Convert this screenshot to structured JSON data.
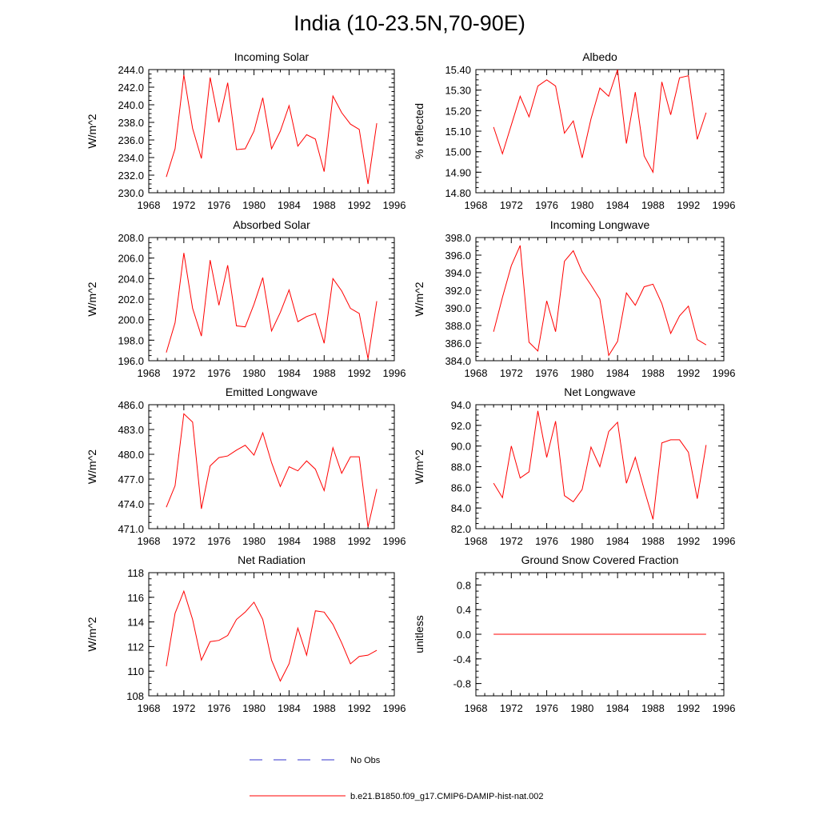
{
  "figure": {
    "title": "India (10-23.5N,70-90E)"
  },
  "legend": {
    "placement": "bottom-center",
    "entries": [
      {
        "label": "No Obs",
        "color": "#3333cc",
        "style": "dashed"
      },
      {
        "label": "b.e21.B1850.f09_g17.CMIP6-DAMIP-hist-nat.002",
        "color": "#ff0000",
        "style": "solid"
      }
    ]
  },
  "chart_data": [
    {
      "type": "line",
      "title": "Incoming Solar",
      "ylabel": "W/m^2",
      "xlim": [
        1968,
        1996
      ],
      "ylim": [
        230,
        244
      ],
      "xticks": [
        "1968",
        "1972",
        "1976",
        "1980",
        "1984",
        "1988",
        "1992",
        "1996"
      ],
      "yticks": [
        "230.0",
        "232.0",
        "234.0",
        "236.0",
        "238.0",
        "240.0",
        "242.0",
        "244.0"
      ],
      "x": [
        1970,
        1971,
        1972,
        1973,
        1974,
        1975,
        1976,
        1977,
        1978,
        1979,
        1980,
        1981,
        1982,
        1983,
        1984,
        1985,
        1986,
        1987,
        1988,
        1989,
        1990,
        1991,
        1992,
        1993,
        1994
      ],
      "series": [
        {
          "name": "b.e21.B1850.f09_g17.CMIP6-DAMIP-hist-nat.002",
          "color": "#ff0000",
          "values": [
            231.8,
            235.0,
            243.4,
            237.3,
            233.9,
            243.1,
            238.0,
            242.5,
            234.9,
            235.0,
            237.0,
            240.8,
            235.0,
            237.0,
            239.9,
            235.3,
            236.6,
            236.1,
            232.4,
            241.0,
            239.1,
            237.8,
            237.2,
            231.0,
            237.9
          ]
        }
      ]
    },
    {
      "type": "line",
      "title": "Albedo",
      "ylabel": "% reflected",
      "xlim": [
        1968,
        1996
      ],
      "ylim": [
        14.8,
        15.4
      ],
      "xticks": [
        "1968",
        "1972",
        "1976",
        "1980",
        "1984",
        "1988",
        "1992",
        "1996"
      ],
      "yticks": [
        "14.80",
        "14.90",
        "15.00",
        "15.10",
        "15.20",
        "15.30",
        "15.40"
      ],
      "x": [
        1970,
        1971,
        1972,
        1973,
        1974,
        1975,
        1976,
        1977,
        1978,
        1979,
        1980,
        1981,
        1982,
        1983,
        1984,
        1985,
        1986,
        1987,
        1988,
        1989,
        1990,
        1991,
        1992,
        1993,
        1994
      ],
      "series": [
        {
          "name": "b.e21.B1850.f09_g17.CMIP6-DAMIP-hist-nat.002",
          "color": "#ff0000",
          "values": [
            15.12,
            14.99,
            15.13,
            15.27,
            15.17,
            15.32,
            15.35,
            15.32,
            15.09,
            15.15,
            14.97,
            15.16,
            15.31,
            15.27,
            15.4,
            15.04,
            15.29,
            14.98,
            14.9,
            15.34,
            15.18,
            15.36,
            15.37,
            15.06,
            15.19
          ]
        }
      ]
    },
    {
      "type": "line",
      "title": "Absorbed Solar",
      "ylabel": "W/m^2",
      "xlim": [
        1968,
        1996
      ],
      "ylim": [
        196,
        208
      ],
      "xticks": [
        "1968",
        "1972",
        "1976",
        "1980",
        "1984",
        "1988",
        "1992",
        "1996"
      ],
      "yticks": [
        "196.0",
        "198.0",
        "200.0",
        "202.0",
        "204.0",
        "206.0",
        "208.0"
      ],
      "x": [
        1970,
        1971,
        1972,
        1973,
        1974,
        1975,
        1976,
        1977,
        1978,
        1979,
        1980,
        1981,
        1982,
        1983,
        1984,
        1985,
        1986,
        1987,
        1988,
        1989,
        1990,
        1991,
        1992,
        1993,
        1994
      ],
      "series": [
        {
          "name": "b.e21.B1850.f09_g17.CMIP6-DAMIP-hist-nat.002",
          "color": "#ff0000",
          "values": [
            196.8,
            199.7,
            206.5,
            201.1,
            198.4,
            205.8,
            201.4,
            205.3,
            199.4,
            199.3,
            201.5,
            204.1,
            198.9,
            200.7,
            202.9,
            199.8,
            200.3,
            200.6,
            197.7,
            204.0,
            202.8,
            201.1,
            200.6,
            196.2,
            201.8
          ]
        }
      ]
    },
    {
      "type": "line",
      "title": "Incoming Longwave",
      "ylabel": "W/m^2",
      "xlim": [
        1968,
        1996
      ],
      "ylim": [
        384,
        398
      ],
      "xticks": [
        "1968",
        "1972",
        "1976",
        "1980",
        "1984",
        "1988",
        "1992",
        "1996"
      ],
      "yticks": [
        "384.0",
        "386.0",
        "388.0",
        "390.0",
        "392.0",
        "394.0",
        "396.0",
        "398.0"
      ],
      "x": [
        1970,
        1971,
        1972,
        1973,
        1974,
        1975,
        1976,
        1977,
        1978,
        1979,
        1980,
        1981,
        1982,
        1983,
        1984,
        1985,
        1986,
        1987,
        1988,
        1989,
        1990,
        1991,
        1992,
        1993,
        1994
      ],
      "series": [
        {
          "name": "b.e21.B1850.f09_g17.CMIP6-DAMIP-hist-nat.002",
          "color": "#ff0000",
          "values": [
            387.3,
            391.2,
            394.8,
            397.1,
            386.1,
            385.1,
            390.8,
            387.3,
            395.3,
            396.5,
            394.1,
            392.6,
            391.0,
            384.6,
            386.2,
            391.7,
            390.3,
            392.4,
            392.7,
            390.5,
            387.1,
            389.1,
            390.2,
            386.4,
            385.8
          ]
        }
      ]
    },
    {
      "type": "line",
      "title": "Emitted Longwave",
      "ylabel": "W/m^2",
      "xlim": [
        1968,
        1996
      ],
      "ylim": [
        471,
        486
      ],
      "xticks": [
        "1968",
        "1972",
        "1976",
        "1980",
        "1984",
        "1988",
        "1992",
        "1996"
      ],
      "yticks": [
        "471.0",
        "474.0",
        "477.0",
        "480.0",
        "483.0",
        "486.0"
      ],
      "x": [
        1970,
        1971,
        1972,
        1973,
        1974,
        1975,
        1976,
        1977,
        1978,
        1979,
        1980,
        1981,
        1982,
        1983,
        1984,
        1985,
        1986,
        1987,
        1988,
        1989,
        1990,
        1991,
        1992,
        1993,
        1994
      ],
      "series": [
        {
          "name": "b.e21.B1850.f09_g17.CMIP6-DAMIP-hist-nat.002",
          "color": "#ff0000",
          "values": [
            473.6,
            476.2,
            484.9,
            483.9,
            473.4,
            478.6,
            479.6,
            479.8,
            480.5,
            481.1,
            479.9,
            482.6,
            479.0,
            476.1,
            478.5,
            478.0,
            479.2,
            478.2,
            475.6,
            480.8,
            477.7,
            479.7,
            479.7,
            471.2,
            475.8
          ]
        }
      ]
    },
    {
      "type": "line",
      "title": "Net Longwave",
      "ylabel": "W/m^2",
      "xlim": [
        1968,
        1996
      ],
      "ylim": [
        82,
        94
      ],
      "xticks": [
        "1968",
        "1972",
        "1976",
        "1980",
        "1984",
        "1988",
        "1992",
        "1996"
      ],
      "yticks": [
        "82.0",
        "84.0",
        "86.0",
        "88.0",
        "90.0",
        "92.0",
        "94.0"
      ],
      "x": [
        1970,
        1971,
        1972,
        1973,
        1974,
        1975,
        1976,
        1977,
        1978,
        1979,
        1980,
        1981,
        1982,
        1983,
        1984,
        1985,
        1986,
        1987,
        1988,
        1989,
        1990,
        1991,
        1992,
        1993,
        1994
      ],
      "series": [
        {
          "name": "b.e21.B1850.f09_g17.CMIP6-DAMIP-hist-nat.002",
          "color": "#ff0000",
          "values": [
            86.4,
            85.0,
            90.0,
            86.9,
            87.5,
            93.4,
            88.9,
            92.4,
            85.2,
            84.6,
            85.8,
            89.9,
            88.0,
            91.4,
            92.3,
            86.4,
            88.9,
            85.8,
            82.9,
            90.3,
            90.6,
            90.6,
            89.4,
            84.9,
            90.1
          ]
        }
      ]
    },
    {
      "type": "line",
      "title": "Net Radiation",
      "ylabel": "W/m^2",
      "xlim": [
        1968,
        1996
      ],
      "ylim": [
        108,
        118
      ],
      "xticks": [
        "1968",
        "1972",
        "1976",
        "1980",
        "1984",
        "1988",
        "1992",
        "1996"
      ],
      "yticks": [
        "108",
        "110",
        "112",
        "114",
        "116",
        "118"
      ],
      "x": [
        1970,
        1971,
        1972,
        1973,
        1974,
        1975,
        1976,
        1977,
        1978,
        1979,
        1980,
        1981,
        1982,
        1983,
        1984,
        1985,
        1986,
        1987,
        1988,
        1989,
        1990,
        1991,
        1992,
        1993,
        1994
      ],
      "series": [
        {
          "name": "b.e21.B1850.f09_g17.CMIP6-DAMIP-hist-nat.002",
          "color": "#ff0000",
          "values": [
            110.4,
            114.7,
            116.5,
            114.2,
            110.9,
            112.4,
            112.5,
            112.9,
            114.2,
            114.8,
            115.6,
            114.2,
            110.9,
            109.2,
            110.6,
            113.5,
            111.3,
            114.9,
            114.8,
            113.8,
            112.3,
            110.6,
            111.2,
            111.3,
            111.7
          ]
        }
      ]
    },
    {
      "type": "line",
      "title": "Ground Snow Covered Fraction",
      "ylabel": "unitless",
      "xlim": [
        1968,
        1996
      ],
      "ylim": [
        -1.0,
        1.0
      ],
      "xticks": [
        "1968",
        "1972",
        "1976",
        "1980",
        "1984",
        "1988",
        "1992",
        "1996"
      ],
      "yticks": [
        "-0.8",
        "-0.4",
        "0.0",
        "0.4",
        "0.8"
      ],
      "ytick_values": [
        -0.8,
        -0.4,
        0.0,
        0.4,
        0.8
      ],
      "x": [
        1970,
        1971,
        1972,
        1973,
        1974,
        1975,
        1976,
        1977,
        1978,
        1979,
        1980,
        1981,
        1982,
        1983,
        1984,
        1985,
        1986,
        1987,
        1988,
        1989,
        1990,
        1991,
        1992,
        1993,
        1994
      ],
      "series": [
        {
          "name": "b.e21.B1850.f09_g17.CMIP6-DAMIP-hist-nat.002",
          "color": "#ff0000",
          "values": [
            0,
            0,
            0,
            0,
            0,
            0,
            0,
            0,
            0,
            0,
            0,
            0,
            0,
            0,
            0,
            0,
            0,
            0,
            0,
            0,
            0,
            0,
            0,
            0,
            0
          ]
        }
      ]
    }
  ]
}
